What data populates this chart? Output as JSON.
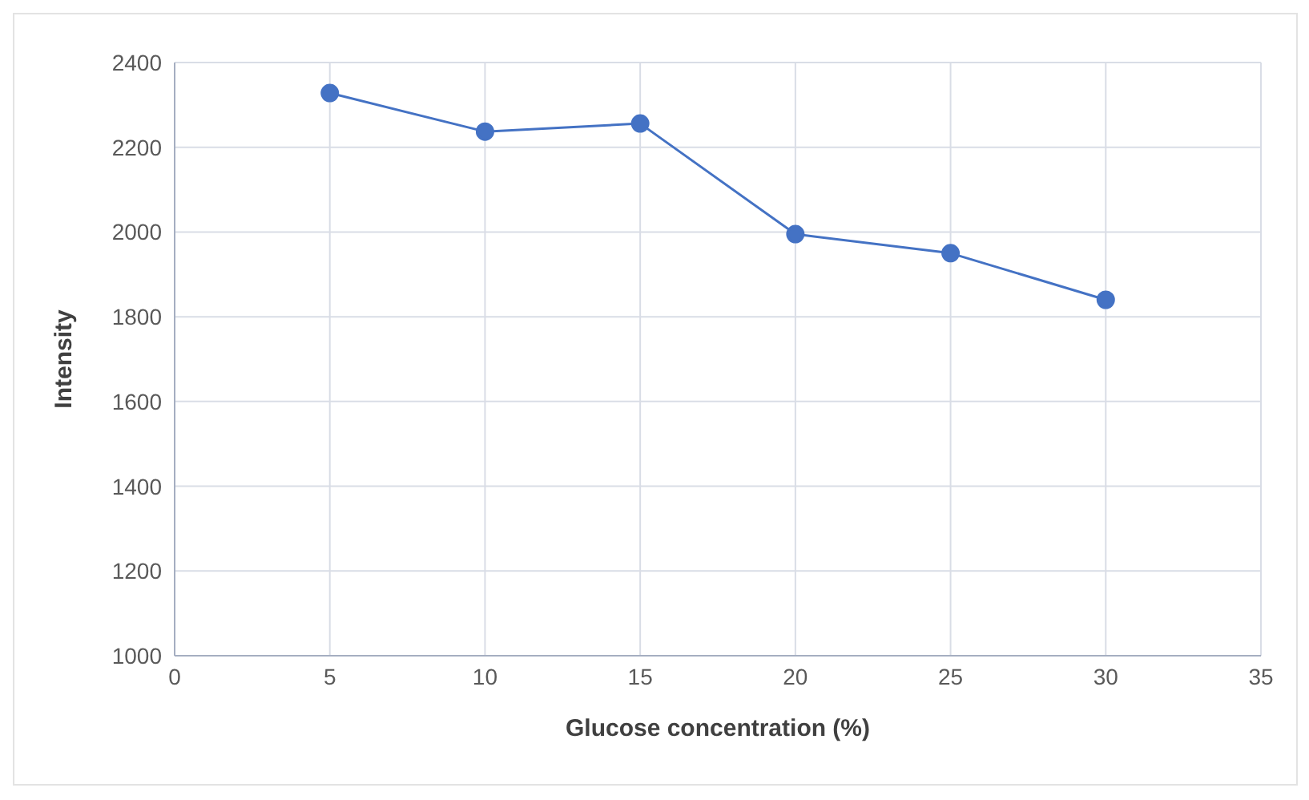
{
  "chart_data": {
    "type": "line",
    "xlabel": "Glucose concentration  (%)",
    "ylabel": "Intensity",
    "x": [
      5,
      10,
      15,
      20,
      25,
      30
    ],
    "series": [
      {
        "color": "#4472c4",
        "values": [
          2328,
          2237,
          2256,
          1995,
          1950,
          1840
        ]
      }
    ],
    "xlim": [
      0,
      35
    ],
    "xticks": [
      0,
      5,
      10,
      15,
      20,
      25,
      30,
      35
    ],
    "ylim": [
      1000,
      2400
    ],
    "yticks": [
      1000,
      1200,
      1400,
      1600,
      1800,
      2000,
      2200,
      2400
    ],
    "grid": true,
    "marker": "circle",
    "line_style": "solid",
    "legend": false
  }
}
